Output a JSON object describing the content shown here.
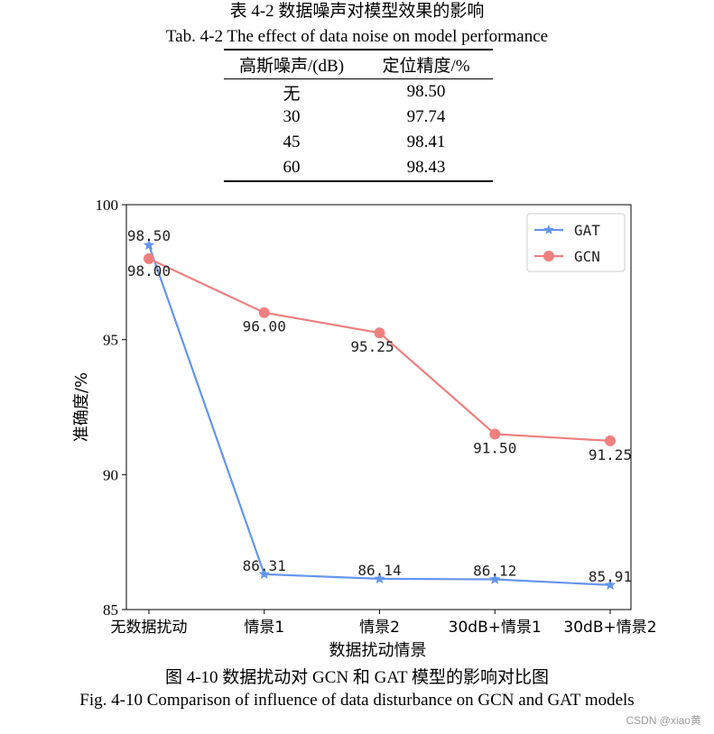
{
  "table": {
    "caption_cn": "表 4-2  数据噪声对模型效果的影响",
    "caption_en": "Tab. 4-2 The effect of data noise on model performance",
    "headers": [
      "高斯噪声/(dB)",
      "定位精度/%"
    ],
    "rows": [
      [
        "无",
        "98.50"
      ],
      [
        "30",
        "97.74"
      ],
      [
        "45",
        "98.41"
      ],
      [
        "60",
        "98.43"
      ]
    ]
  },
  "figure": {
    "caption_cn": "图 4-10  数据扰动对 GCN 和 GAT 模型的影响对比图",
    "caption_en": "Fig. 4-10 Comparison of influence of data disturbance on GCN and GAT models"
  },
  "watermark": "CSDN @xiao黄",
  "chart_data": {
    "type": "line",
    "xlabel": "数据扰动情景",
    "ylabel": "准确度/%",
    "categories": [
      "无数据扰动",
      "情景1",
      "情景2",
      "30dB+情景1",
      "30dB+情景2"
    ],
    "ylim": [
      85,
      100
    ],
    "yticks": [
      85,
      90,
      95,
      100
    ],
    "grid": false,
    "legend_position": "top-right",
    "series": [
      {
        "name": "GAT",
        "color": "#6495ed",
        "marker": "star",
        "values": [
          98.5,
          86.31,
          86.14,
          86.12,
          85.91
        ],
        "labels": [
          "98.50",
          "86.31",
          "86.14",
          "86.12",
          "85.91"
        ]
      },
      {
        "name": "GCN",
        "color": "#f08080",
        "marker": "circle",
        "values": [
          98.0,
          96.0,
          95.25,
          91.5,
          91.25
        ],
        "labels": [
          "98.00",
          "96.00",
          "95.25",
          "91.50",
          "91.25"
        ]
      }
    ]
  }
}
